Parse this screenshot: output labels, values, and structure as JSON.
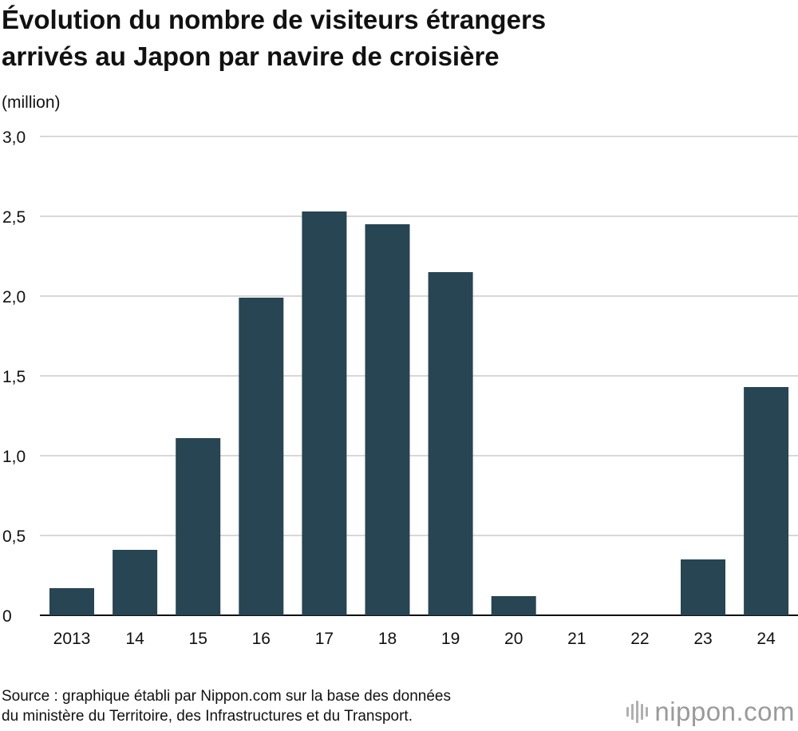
{
  "title_lines": [
    "Évolution du nombre de visiteurs étrangers",
    "arrivés au Japon par navire de croisière"
  ],
  "unit_label": "(million)",
  "source_lines": [
    "Source : graphique établi par Nippon.com sur la base des données",
    "du ministère du Territoire, des Infrastructures et du Transport."
  ],
  "brand": {
    "name": "nippon",
    "suffix": ".com",
    "icon": "nippon-logo-icon"
  },
  "colors": {
    "bar": "#274553",
    "grid": "#cccccc",
    "axis": "#111111"
  },
  "chart_data": {
    "type": "bar",
    "title": "Évolution du nombre de visiteurs étrangers arrivés au Japon par navire de croisière",
    "ylabel": "(million)",
    "xlabel": "",
    "categories": [
      "2013",
      "14",
      "15",
      "16",
      "17",
      "18",
      "19",
      "20",
      "21",
      "22",
      "23",
      "24"
    ],
    "values": [
      0.17,
      0.41,
      1.11,
      1.99,
      2.53,
      2.45,
      2.15,
      0.12,
      0,
      0,
      0.35,
      1.43
    ],
    "ylim": [
      0,
      3.0
    ],
    "yticks": [
      0,
      0.5,
      1.0,
      1.5,
      2.0,
      2.5,
      3.0
    ],
    "ytick_labels": [
      "0",
      "0,5",
      "1,0",
      "1,5",
      "2,0",
      "2,5",
      "3,0"
    ],
    "grid": true,
    "legend": "none"
  }
}
